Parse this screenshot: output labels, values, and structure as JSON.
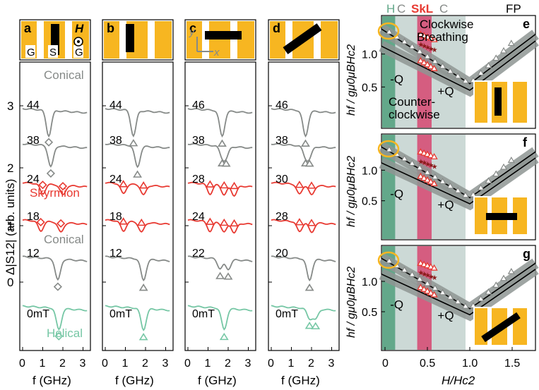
{
  "colors": {
    "gold": "#f7b621",
    "gray": "#868a88",
    "red": "#e83a32",
    "darkred": "#8b1c1c",
    "green": "#76c7a5",
    "helical_band": "#63a88a",
    "conical_band": "#ccd9d6",
    "skl_band": "#d55d80",
    "ribbon": "#8e9593"
  },
  "panel_labels": {
    "a": "a",
    "b": "b",
    "c": "c",
    "d": "d",
    "e": "e",
    "f": "f",
    "g": "g"
  },
  "schematic": {
    "gsg": [
      "G",
      "S",
      "G"
    ],
    "h_label": "H",
    "axis_x": "x",
    "axis_y": "y"
  },
  "spectra": {
    "ylabel": "Δ|S12| (arb. units)",
    "ytick_labels": [
      "3",
      "2",
      "1",
      "0"
    ],
    "xtick_labels": [
      "0",
      "1",
      "2",
      "3"
    ],
    "xlabel": "f (GHz)",
    "phase_labels": {
      "conical_top": "Conical",
      "skyrmion": "Skyrmion",
      "conical_mid": "Conical",
      "helical": "Helical"
    },
    "fields_a": [
      "44",
      "38",
      "24",
      "18",
      "12",
      "0mT"
    ],
    "fields_b": [
      "44",
      "38",
      "24",
      "18",
      "12",
      "0mT"
    ],
    "fields_c": [
      "46",
      "38",
      "28",
      "24",
      "22",
      "0mT"
    ],
    "fields_d": [
      "46",
      "38",
      "30",
      "28",
      "20",
      "0mT"
    ]
  },
  "diagram": {
    "phase_bands": [
      "H",
      "C",
      "SkL",
      "C",
      "FP"
    ],
    "ylabel": "hf / gμ0μBHc2",
    "xlabel": "H/Hc2",
    "xtick_labels": [
      "0",
      "0.5",
      "1.0",
      "1.5"
    ],
    "ytick_labels": [
      "1.0",
      "0.5"
    ],
    "mode_labels": {
      "cw": "Clockwise",
      "br": "Breathing",
      "ccw": "Counter-\nclockwise",
      "mq": "-Q",
      "pq": "+Q"
    }
  },
  "chart_data": [
    {
      "panel": "a",
      "type": "line",
      "xlabel": "f (GHz)",
      "ylabel": "Δ|S12| (arb. units)",
      "xlim": [
        0,
        3.2
      ],
      "series": [
        {
          "name": "44",
          "phase": "Conical",
          "dip_GHz": [
            1.3
          ],
          "color": "gray"
        },
        {
          "name": "38",
          "phase": "Conical",
          "dip_GHz": [
            1.4
          ],
          "color": "gray"
        },
        {
          "name": "24",
          "phase": "Skyrmion",
          "dip_GHz": [
            1.0,
            2.0
          ],
          "color": "red"
        },
        {
          "name": "18",
          "phase": "Skyrmion",
          "dip_GHz": [
            0.9,
            1.9
          ],
          "color": "red"
        },
        {
          "name": "12",
          "phase": "Conical",
          "dip_GHz": [
            1.75
          ],
          "color": "gray"
        },
        {
          "name": "0mT",
          "phase": "Helical",
          "dip_GHz": [
            1.8
          ],
          "color": "green"
        }
      ]
    },
    {
      "panel": "b",
      "type": "line",
      "xlim": [
        0,
        3.2
      ],
      "series": [
        {
          "name": "44",
          "dip_GHz": [
            1.4
          ]
        },
        {
          "name": "38",
          "dip_GHz": [
            1.6
          ]
        },
        {
          "name": "24",
          "dip_GHz": [
            0.9,
            1.9
          ]
        },
        {
          "name": "18",
          "dip_GHz": [
            0.9,
            1.8
          ]
        },
        {
          "name": "12",
          "dip_GHz": [
            1.9
          ]
        },
        {
          "name": "0mT",
          "dip_GHz": [
            1.9
          ]
        }
      ]
    },
    {
      "panel": "c",
      "type": "line",
      "xlim": [
        0,
        3.2
      ],
      "series": [
        {
          "name": "46",
          "dip_GHz": [
            1.7
          ]
        },
        {
          "name": "38",
          "dip_GHz": [
            1.7,
            1.9
          ]
        },
        {
          "name": "28",
          "dip_GHz": [
            1.1,
            1.8,
            2.3
          ]
        },
        {
          "name": "24",
          "dip_GHz": [
            1.1,
            1.8,
            2.3
          ]
        },
        {
          "name": "22",
          "dip_GHz": [
            1.6,
            2.0
          ]
        },
        {
          "name": "0mT",
          "dip_GHz": [
            1.8
          ]
        }
      ]
    },
    {
      "panel": "d",
      "type": "line",
      "xlim": [
        0,
        3.2
      ],
      "series": [
        {
          "name": "46",
          "dip_GHz": [
            1.7
          ]
        },
        {
          "name": "38",
          "dip_GHz": [
            1.7,
            1.9
          ]
        },
        {
          "name": "30",
          "dip_GHz": [
            1.4,
            2.0
          ]
        },
        {
          "name": "28",
          "dip_GHz": [
            1.4,
            2.0
          ]
        },
        {
          "name": "20",
          "dip_GHz": [
            1.9
          ]
        },
        {
          "name": "0mT",
          "dip_GHz": [
            1.9,
            2.2
          ]
        }
      ]
    }
  ]
}
